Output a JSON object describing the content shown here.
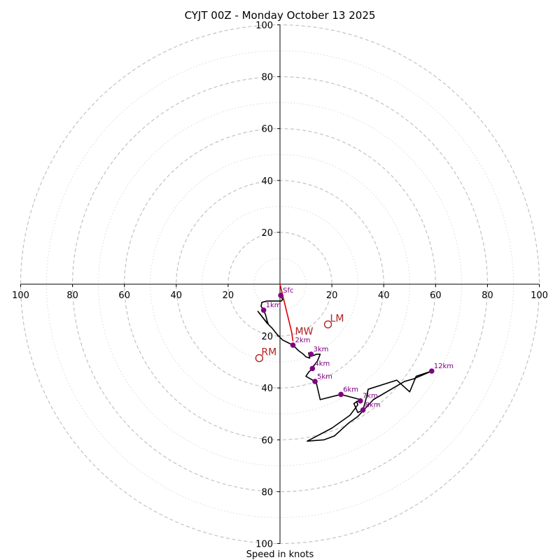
{
  "chart_data": {
    "type": "hodograph",
    "title": "CYJT 00Z - Monday October 13 2025",
    "xlabel": "Speed in knots",
    "axis_range_knots": [
      -100,
      100
    ],
    "rings_major_knots": [
      20,
      40,
      60,
      80,
      100
    ],
    "rings_minor_knots": [
      10,
      30,
      50,
      70,
      90
    ],
    "x_ticks": [
      {
        "v": -100,
        "label": "100"
      },
      {
        "v": -80,
        "label": "80"
      },
      {
        "v": -60,
        "label": "60"
      },
      {
        "v": -40,
        "label": "40"
      },
      {
        "v": -20,
        "label": "20"
      },
      {
        "v": 20,
        "label": "20"
      },
      {
        "v": 40,
        "label": "40"
      },
      {
        "v": 60,
        "label": "60"
      },
      {
        "v": 80,
        "label": "80"
      },
      {
        "v": 100,
        "label": "100"
      }
    ],
    "y_ticks": [
      {
        "v": 100,
        "label": "100"
      },
      {
        "v": 80,
        "label": "80"
      },
      {
        "v": 60,
        "label": "60"
      },
      {
        "v": 40,
        "label": "40"
      },
      {
        "v": 20,
        "label": "20"
      },
      {
        "v": -20,
        "label": "20"
      },
      {
        "v": -40,
        "label": "40"
      },
      {
        "v": -60,
        "label": "60"
      },
      {
        "v": -80,
        "label": "80"
      },
      {
        "v": -100,
        "label": "100"
      }
    ],
    "hodograph_uv_knots": [
      [
        0,
        -4
      ],
      [
        0.5,
        -4.5
      ],
      [
        1,
        -6
      ],
      [
        0.5,
        -6.5
      ],
      [
        -5,
        -6.5
      ],
      [
        -7,
        -7
      ],
      [
        -7.3,
        -8.5
      ],
      [
        -6.3,
        -10
      ],
      [
        -5.5,
        -12
      ],
      [
        -5,
        -14
      ],
      [
        -4.5,
        -15.5
      ],
      [
        -8.5,
        -10.5
      ],
      [
        -5,
        -15
      ],
      [
        -3,
        -17
      ],
      [
        -1,
        -19.5
      ],
      [
        1,
        -21.5
      ],
      [
        3,
        -22.5
      ],
      [
        5,
        -23.5
      ],
      [
        7,
        -25.5
      ],
      [
        9,
        -27
      ],
      [
        10,
        -28
      ],
      [
        11.5,
        -28.5
      ],
      [
        11,
        -26.5
      ],
      [
        13,
        -27.5
      ],
      [
        14,
        -27
      ],
      [
        15.5,
        -27
      ],
      [
        14.5,
        -29.5
      ],
      [
        13,
        -31.5
      ],
      [
        12.5,
        -32.5
      ],
      [
        11,
        -34
      ],
      [
        10,
        -35.5
      ],
      [
        13.5,
        -37.5
      ],
      [
        14,
        -38
      ],
      [
        15.5,
        -44.5
      ],
      [
        23.5,
        -42.5
      ],
      [
        31,
        -44.5
      ],
      [
        28.5,
        -46
      ],
      [
        30,
        -49.5
      ],
      [
        32,
        -48.5
      ],
      [
        33.5,
        -43
      ],
      [
        34,
        -40.5
      ],
      [
        45,
        -37
      ],
      [
        50,
        -41.5
      ],
      [
        52.5,
        -35.5
      ],
      [
        58.5,
        -33.5
      ],
      [
        51.5,
        -36.5
      ],
      [
        48,
        -37.5
      ],
      [
        36,
        -44.5
      ],
      [
        30,
        -51
      ],
      [
        26.5,
        -53.5
      ],
      [
        21,
        -58.5
      ],
      [
        17,
        -60
      ],
      [
        10.5,
        -60.5
      ],
      [
        20,
        -55.5
      ],
      [
        27,
        -50.5
      ],
      [
        30,
        -46.5
      ],
      [
        29.5,
        -45
      ]
    ],
    "height_markers": [
      {
        "label": "Sfc",
        "u": 0.3,
        "v": -4.3
      },
      {
        "label": "1km",
        "u": -6.3,
        "v": -10
      },
      {
        "label": "2km",
        "u": 5,
        "v": -23.5
      },
      {
        "label": "3km",
        "u": 12,
        "v": -27
      },
      {
        "label": "4km",
        "u": 12.5,
        "v": -32.5
      },
      {
        "label": "5km",
        "u": 13.5,
        "v": -37.5
      },
      {
        "label": "6km",
        "u": 23.5,
        "v": -42.5
      },
      {
        "label": "7km",
        "u": 31,
        "v": -45
      },
      {
        "label": "8km",
        "u": 32,
        "v": -48.5
      },
      {
        "label": "12km",
        "u": 58.5,
        "v": -33.5
      }
    ],
    "mean_wind_line_uv_knots": [
      [
        0,
        0
      ],
      [
        4.5,
        -18.5
      ],
      [
        5,
        -22
      ]
    ],
    "storm_motion": [
      {
        "label": "LM",
        "u": 18.5,
        "v": -15.5
      },
      {
        "label": "RM",
        "u": -8,
        "v": -28.5
      },
      {
        "label": "MW",
        "u": 5,
        "v": -20.5
      }
    ],
    "colors": {
      "hodograph": "#000000",
      "mean_wind": "#e00000",
      "height_marker": "#800080",
      "storm_motion": "#b22222",
      "rings": "#bdbdbd"
    }
  }
}
